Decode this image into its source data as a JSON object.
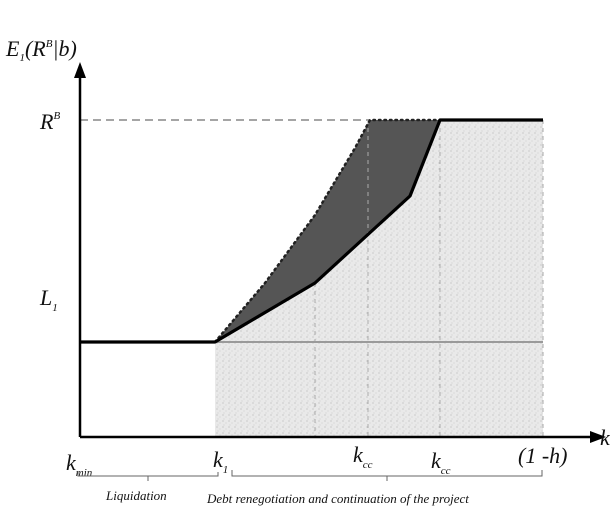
{
  "axes": {
    "y_label_main": "E",
    "y_label_sub": "1",
    "y_label_arg": "(R",
    "y_label_sup": "B",
    "y_label_tail": "|b)",
    "x_label": "k"
  },
  "y_ticks": {
    "rb_main": "R",
    "rb_sup": "B",
    "l1_main": "L",
    "l1_sub": "1"
  },
  "x_ticks": {
    "kmin_main": "k",
    "kmin_sub": "min",
    "k1_main": "k",
    "k1_sub": "1",
    "kcc1_main": "k",
    "kcc1_sub": "cc",
    "kcc2_main": "k",
    "kcc2_sub": "cc",
    "one_minus_h": "(1 -h)"
  },
  "regions": {
    "liquidation": "Liquidation",
    "renegotiation": "Debt renegotiation and continuation of the project"
  },
  "colors": {
    "axis": "#000000",
    "curve": "#000000",
    "shaded_dark": "#555555",
    "shaded_light": "#e6e6e6",
    "reference_line": "#999999",
    "dashed_guide": "#aaaaaa"
  }
}
